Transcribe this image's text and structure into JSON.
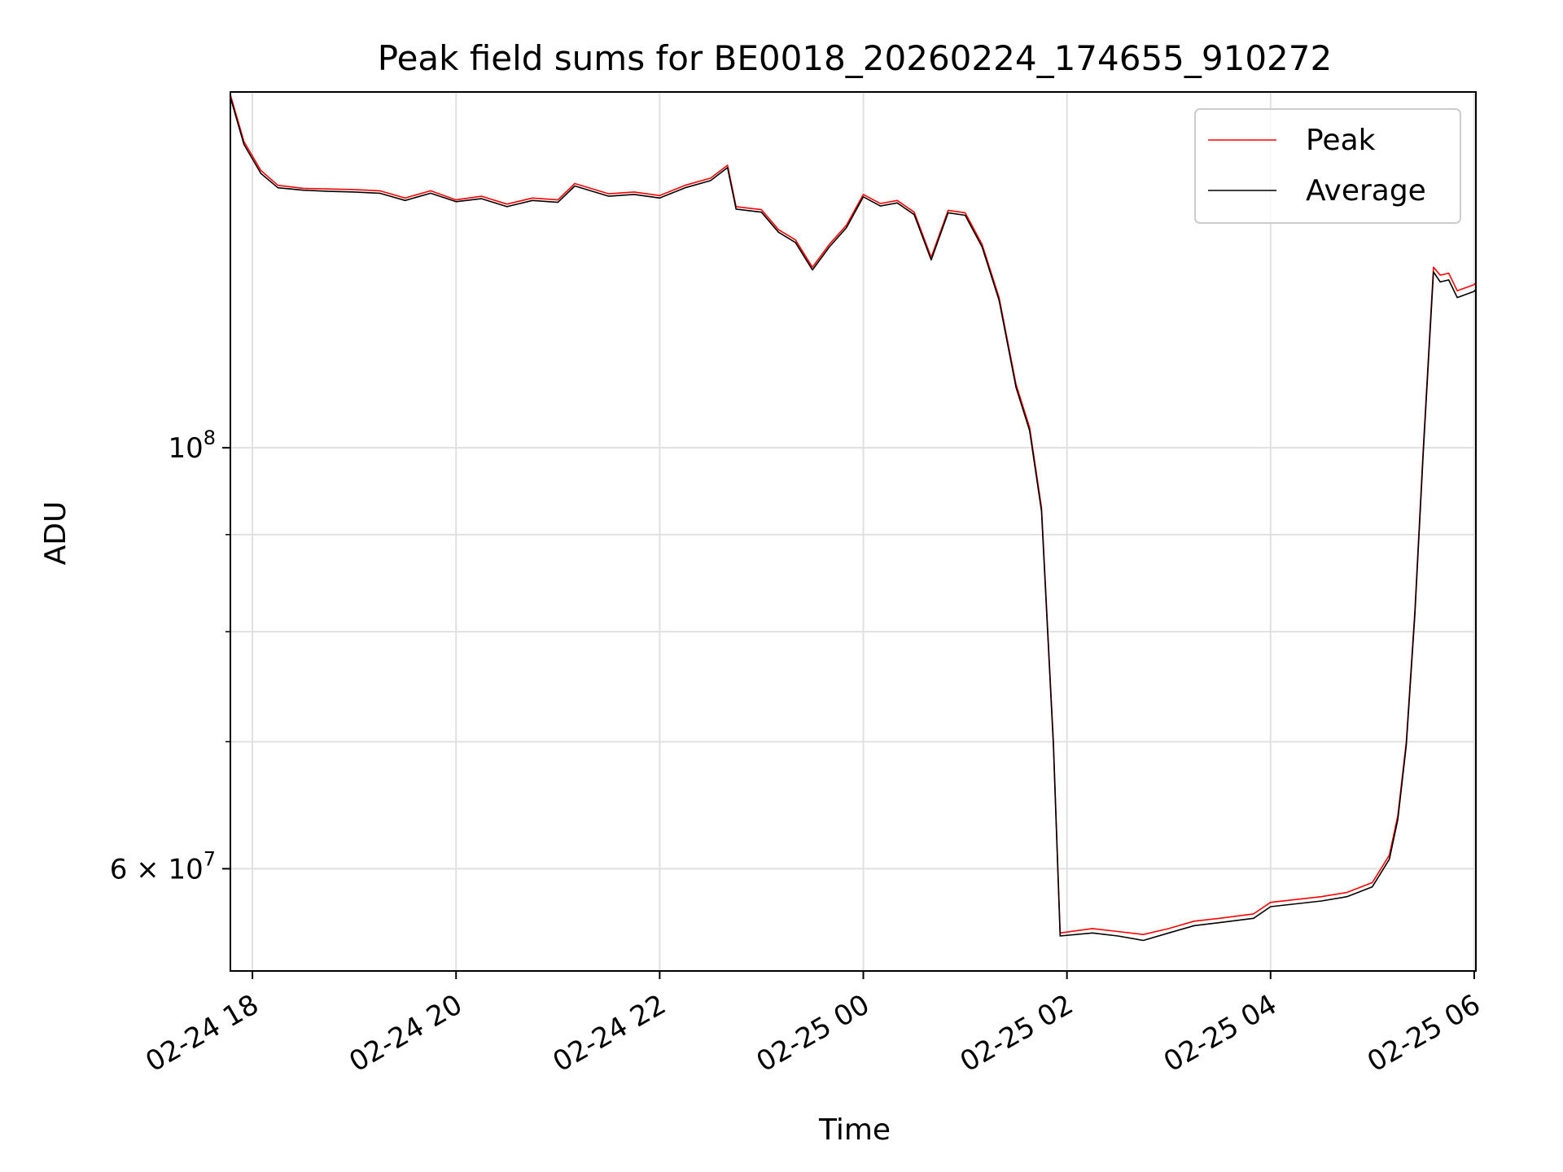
{
  "chart_data": {
    "type": "line",
    "title": "Peak field sums for BE0018_20260224_174655_910272",
    "xlabel": "Time",
    "ylabel": "ADU",
    "y_scale": "log",
    "ylim": [
      53000000,
      154000000
    ],
    "xlim": [
      "2026-02-24T17:47",
      "2026-02-25T06:01"
    ],
    "grid": true,
    "legend_position": "top-right",
    "x_ticks": [
      {
        "t": "2026-02-24T18:00",
        "label": "02-24 18"
      },
      {
        "t": "2026-02-24T20:00",
        "label": "02-24 20"
      },
      {
        "t": "2026-02-24T22:00",
        "label": "02-24 22"
      },
      {
        "t": "2026-02-25T00:00",
        "label": "02-25 00"
      },
      {
        "t": "2026-02-25T02:00",
        "label": "02-25 02"
      },
      {
        "t": "2026-02-25T04:00",
        "label": "02-25 04"
      },
      {
        "t": "2026-02-25T06:00",
        "label": "02-25 06"
      }
    ],
    "y_major_ticks": [
      {
        "value": 60000000,
        "label_base": "6 × 10",
        "label_exp": "7"
      },
      {
        "value": 100000000,
        "label_base": "10",
        "label_exp": "8"
      }
    ],
    "y_minor_ticks": [
      70000000,
      80000000,
      90000000
    ],
    "series": [
      {
        "name": "Peak",
        "color": "#ff0000",
        "points": [
          [
            "2026-02-24T17:47",
            153500000
          ],
          [
            "2026-02-24T17:55",
            145000000
          ],
          [
            "2026-02-24T18:05",
            140000000
          ],
          [
            "2026-02-24T18:15",
            137500000
          ],
          [
            "2026-02-24T18:30",
            137000000
          ],
          [
            "2026-02-24T18:45",
            136900000
          ],
          [
            "2026-02-24T19:00",
            136800000
          ],
          [
            "2026-02-24T19:15",
            136600000
          ],
          [
            "2026-02-24T19:30",
            135400000
          ],
          [
            "2026-02-24T19:45",
            136600000
          ],
          [
            "2026-02-24T20:00",
            135100000
          ],
          [
            "2026-02-24T20:15",
            135700000
          ],
          [
            "2026-02-24T20:30",
            134400000
          ],
          [
            "2026-02-24T20:45",
            135400000
          ],
          [
            "2026-02-24T21:00",
            135100000
          ],
          [
            "2026-02-24T21:10",
            137800000
          ],
          [
            "2026-02-24T21:30",
            136100000
          ],
          [
            "2026-02-24T21:45",
            136400000
          ],
          [
            "2026-02-24T22:00",
            135800000
          ],
          [
            "2026-02-24T22:15",
            137500000
          ],
          [
            "2026-02-24T22:30",
            138700000
          ],
          [
            "2026-02-24T22:40",
            140900000
          ],
          [
            "2026-02-24T22:45",
            134000000
          ],
          [
            "2026-02-24T23:00",
            133500000
          ],
          [
            "2026-02-24T23:10",
            130300000
          ],
          [
            "2026-02-24T23:20",
            128700000
          ],
          [
            "2026-02-24T23:30",
            124500000
          ],
          [
            "2026-02-24T23:40",
            128000000
          ],
          [
            "2026-02-24T23:50",
            131000000
          ],
          [
            "2026-02-25T00:00",
            136000000
          ],
          [
            "2026-02-25T00:10",
            134500000
          ],
          [
            "2026-02-25T00:20",
            135000000
          ],
          [
            "2026-02-25T00:30",
            133100000
          ],
          [
            "2026-02-25T00:40",
            126000000
          ],
          [
            "2026-02-25T00:50",
            133400000
          ],
          [
            "2026-02-25T01:00",
            133000000
          ],
          [
            "2026-02-25T01:10",
            128000000
          ],
          [
            "2026-02-25T01:20",
            120000000
          ],
          [
            "2026-02-25T01:30",
            108000000
          ],
          [
            "2026-02-25T01:38",
            102500000
          ],
          [
            "2026-02-25T01:45",
            93000000
          ],
          [
            "2026-02-25T01:52",
            70000000
          ],
          [
            "2026-02-25T01:56",
            55500000
          ],
          [
            "2026-02-25T02:15",
            55800000
          ],
          [
            "2026-02-25T02:30",
            55600000
          ],
          [
            "2026-02-25T02:45",
            55400000
          ],
          [
            "2026-02-25T03:00",
            55800000
          ],
          [
            "2026-02-25T03:15",
            56300000
          ],
          [
            "2026-02-25T03:30",
            56500000
          ],
          [
            "2026-02-25T03:50",
            56800000
          ],
          [
            "2026-02-25T04:00",
            57600000
          ],
          [
            "2026-02-25T04:15",
            57800000
          ],
          [
            "2026-02-25T04:30",
            58000000
          ],
          [
            "2026-02-25T04:45",
            58300000
          ],
          [
            "2026-02-25T05:00",
            59000000
          ],
          [
            "2026-02-25T05:10",
            61000000
          ],
          [
            "2026-02-25T05:15",
            64000000
          ],
          [
            "2026-02-25T05:20",
            70000000
          ],
          [
            "2026-02-25T05:25",
            82000000
          ],
          [
            "2026-02-25T05:30",
            100000000
          ],
          [
            "2026-02-25T05:36",
            124500000
          ],
          [
            "2026-02-25T05:40",
            123300000
          ],
          [
            "2026-02-25T05:45",
            123600000
          ],
          [
            "2026-02-25T05:50",
            121000000
          ],
          [
            "2026-02-25T06:00",
            121900000
          ],
          [
            "2026-02-25T06:01",
            122200000
          ]
        ]
      },
      {
        "name": "Average",
        "color": "#000000",
        "points": [
          [
            "2026-02-24T17:47",
            153000000
          ],
          [
            "2026-02-24T17:55",
            144500000
          ],
          [
            "2026-02-24T18:05",
            139500000
          ],
          [
            "2026-02-24T18:15",
            137100000
          ],
          [
            "2026-02-24T18:30",
            136700000
          ],
          [
            "2026-02-24T18:45",
            136500000
          ],
          [
            "2026-02-24T19:00",
            136400000
          ],
          [
            "2026-02-24T19:15",
            136200000
          ],
          [
            "2026-02-24T19:30",
            135000000
          ],
          [
            "2026-02-24T19:45",
            136200000
          ],
          [
            "2026-02-24T20:00",
            134800000
          ],
          [
            "2026-02-24T20:15",
            135300000
          ],
          [
            "2026-02-24T20:30",
            134000000
          ],
          [
            "2026-02-24T20:45",
            135000000
          ],
          [
            "2026-02-24T21:00",
            134700000
          ],
          [
            "2026-02-24T21:10",
            137400000
          ],
          [
            "2026-02-24T21:30",
            135700000
          ],
          [
            "2026-02-24T21:45",
            136000000
          ],
          [
            "2026-02-24T22:00",
            135400000
          ],
          [
            "2026-02-24T22:15",
            137100000
          ],
          [
            "2026-02-24T22:30",
            138300000
          ],
          [
            "2026-02-24T22:40",
            140500000
          ],
          [
            "2026-02-24T22:45",
            133600000
          ],
          [
            "2026-02-24T23:00",
            133100000
          ],
          [
            "2026-02-24T23:10",
            129900000
          ],
          [
            "2026-02-24T23:20",
            128300000
          ],
          [
            "2026-02-24T23:30",
            124100000
          ],
          [
            "2026-02-24T23:40",
            127600000
          ],
          [
            "2026-02-24T23:50",
            130600000
          ],
          [
            "2026-02-25T00:00",
            135600000
          ],
          [
            "2026-02-25T00:10",
            134100000
          ],
          [
            "2026-02-25T00:20",
            134600000
          ],
          [
            "2026-02-25T00:30",
            132700000
          ],
          [
            "2026-02-25T00:40",
            125600000
          ],
          [
            "2026-02-25T00:50",
            133000000
          ],
          [
            "2026-02-25T01:00",
            132600000
          ],
          [
            "2026-02-25T01:10",
            127600000
          ],
          [
            "2026-02-25T01:20",
            119600000
          ],
          [
            "2026-02-25T01:30",
            107600000
          ],
          [
            "2026-02-25T01:38",
            102100000
          ],
          [
            "2026-02-25T01:45",
            92600000
          ],
          [
            "2026-02-25T01:52",
            69700000
          ],
          [
            "2026-02-25T01:56",
            55300000
          ],
          [
            "2026-02-25T02:15",
            55500000
          ],
          [
            "2026-02-25T02:30",
            55300000
          ],
          [
            "2026-02-25T02:45",
            55000000
          ],
          [
            "2026-02-25T03:00",
            55500000
          ],
          [
            "2026-02-25T03:15",
            56000000
          ],
          [
            "2026-02-25T03:30",
            56200000
          ],
          [
            "2026-02-25T03:50",
            56500000
          ],
          [
            "2026-02-25T04:00",
            57300000
          ],
          [
            "2026-02-25T04:15",
            57500000
          ],
          [
            "2026-02-25T04:30",
            57700000
          ],
          [
            "2026-02-25T04:45",
            58000000
          ],
          [
            "2026-02-25T05:00",
            58700000
          ],
          [
            "2026-02-25T05:10",
            60700000
          ],
          [
            "2026-02-25T05:15",
            63700000
          ],
          [
            "2026-02-25T05:20",
            69700000
          ],
          [
            "2026-02-25T05:25",
            81600000
          ],
          [
            "2026-02-25T05:30",
            99500000
          ],
          [
            "2026-02-25T05:36",
            123800000
          ],
          [
            "2026-02-25T05:40",
            122300000
          ],
          [
            "2026-02-25T05:45",
            122600000
          ],
          [
            "2026-02-25T05:50",
            120000000
          ],
          [
            "2026-02-25T06:00",
            120900000
          ],
          [
            "2026-02-25T06:01",
            121200000
          ]
        ]
      }
    ]
  }
}
